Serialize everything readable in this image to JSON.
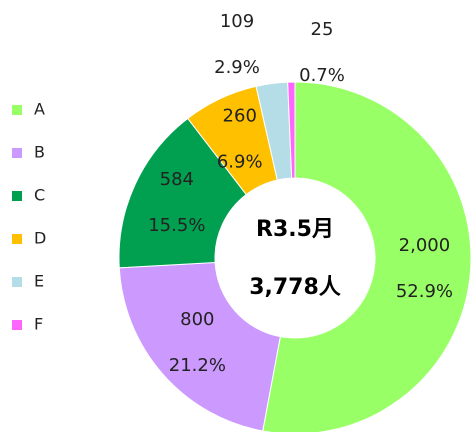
{
  "chart_data": {
    "type": "donut",
    "categories": [
      "A",
      "B",
      "C",
      "D",
      "E",
      "F"
    ],
    "values": [
      2000,
      800,
      584,
      260,
      109,
      25
    ],
    "value_labels": [
      "2,000",
      "800",
      "584",
      "260",
      "109",
      "25"
    ],
    "shares": [
      52.9,
      21.2,
      15.5,
      6.9,
      2.9,
      0.7
    ],
    "share_labels": [
      "52.9%",
      "21.2%",
      "15.5%",
      "6.9%",
      "2.9%",
      "0.7%"
    ],
    "colors": [
      "#99ff66",
      "#cc99ff",
      "#00a050",
      "#ffc000",
      "#b4dde8",
      "#ff66ff"
    ],
    "center_title": "R3.5月",
    "total": 3778,
    "total_label": "3,778人",
    "legend": "left"
  }
}
